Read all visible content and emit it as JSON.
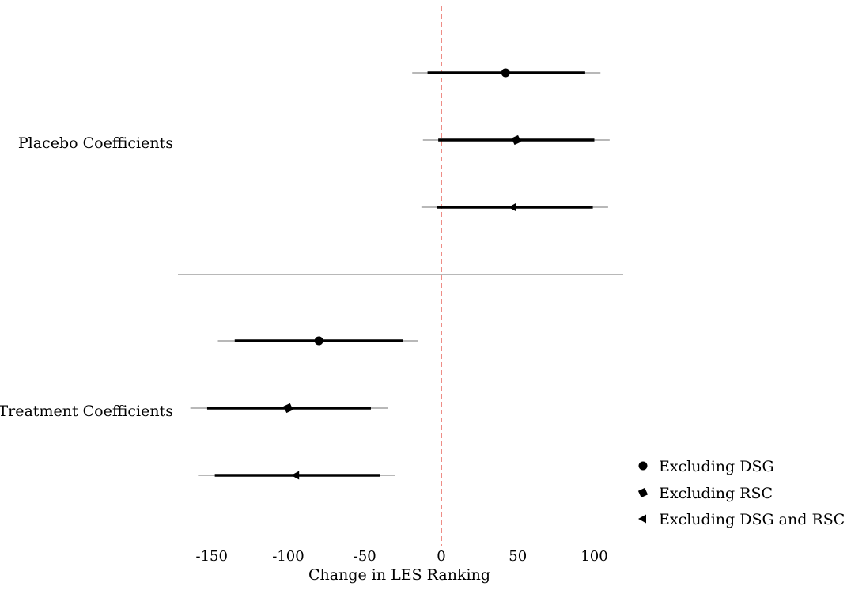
{
  "chart_data": {
    "type": "forest",
    "xlabel": "Change in LES Ranking",
    "xlim": [
      -175,
      118
    ],
    "xticks": [
      -150,
      -100,
      -50,
      0,
      50,
      100
    ],
    "reference_line": {
      "x": 0,
      "color": "#e8665d",
      "style": "dashed"
    },
    "groups": [
      {
        "label": "Placebo Coefficients",
        "rows": [
          {
            "series": "Excluding DSG",
            "estimate": 42,
            "ci_inner": [
              -9,
              94
            ],
            "ci_outer": [
              -19,
              104
            ]
          },
          {
            "series": "Excluding RSC",
            "estimate": 49,
            "ci_inner": [
              -2,
              100
            ],
            "ci_outer": [
              -12,
              110
            ]
          },
          {
            "series": "Excluding DSG and RSC",
            "estimate": 47,
            "ci_inner": [
              -3,
              99
            ],
            "ci_outer": [
              -13,
              109
            ]
          }
        ]
      },
      {
        "label": "Treatment Coefficients",
        "rows": [
          {
            "series": "Excluding DSG",
            "estimate": -80,
            "ci_inner": [
              -135,
              -25
            ],
            "ci_outer": [
              -146,
              -15
            ]
          },
          {
            "series": "Excluding RSC",
            "estimate": -100,
            "ci_inner": [
              -153,
              -46
            ],
            "ci_outer": [
              -164,
              -35
            ]
          },
          {
            "series": "Excluding DSG and RSC",
            "estimate": -95,
            "ci_inner": [
              -148,
              -40
            ],
            "ci_outer": [
              -159,
              -30
            ]
          }
        ]
      }
    ],
    "legend": {
      "position": "bottom-right",
      "entries": [
        {
          "label": "Excluding DSG",
          "marker": "circle"
        },
        {
          "label": "Excluding RSC",
          "marker": "diamond"
        },
        {
          "label": "Excluding DSG and RSC",
          "marker": "triangle-left"
        }
      ]
    },
    "colors": {
      "inner": "#000000",
      "outer": "#a0a0a0",
      "separator": "#a0a0a0"
    }
  }
}
